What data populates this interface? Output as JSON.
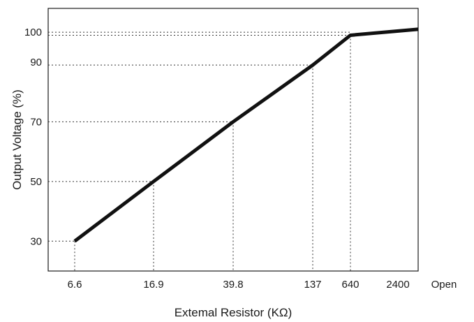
{
  "chart_data": {
    "type": "line",
    "xlabel": "Extemal Resistor (KΩ)",
    "ylabel": "Output Voltage (%)",
    "x_tick_labels": [
      "6.6",
      "16.9",
      "39.8",
      "137",
      "640",
      "2400"
    ],
    "x_end_label": "Open",
    "y_ticks": [
      30,
      50,
      70,
      90,
      100
    ],
    "ylim": [
      20,
      108
    ],
    "grid": "dotted guides from each labeled point to both axes",
    "series": [
      {
        "color": "#111111",
        "points": [
          {
            "x": "6.6",
            "y": 30
          },
          {
            "x": "16.9",
            "y": 50
          },
          {
            "x": "39.8",
            "y": 70
          },
          {
            "x": "137",
            "y": 89
          },
          {
            "x": "640",
            "y": 99
          },
          {
            "x": "Open",
            "y": 101
          }
        ]
      }
    ]
  }
}
